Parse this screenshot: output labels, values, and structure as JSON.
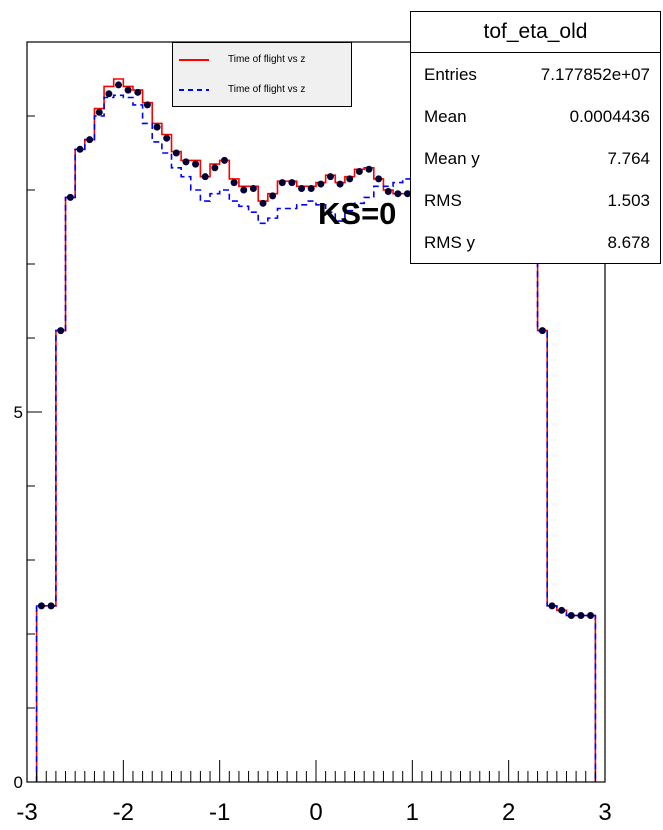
{
  "chart_data": {
    "type": "histogram",
    "title": "tof_eta_old",
    "xlim": [
      -3,
      3
    ],
    "ylim": [
      0,
      10
    ],
    "x_ticks": [
      "-3",
      "-2",
      "-1",
      "0",
      "1",
      "2",
      "3"
    ],
    "y_ticks": [
      {
        "value": 0,
        "label": "0"
      },
      {
        "value": 5,
        "label": "5"
      }
    ],
    "bin_edges": [
      -2.9,
      -2.8,
      -2.7,
      -2.6,
      -2.5,
      -2.4,
      -2.3,
      -2.2,
      -2.1,
      -2.0,
      -1.9,
      -1.8,
      -1.7,
      -1.6,
      -1.5,
      -1.4,
      -1.3,
      -1.2,
      -1.1,
      -1.0,
      -0.9,
      -0.8,
      -0.7,
      -0.6,
      -0.5,
      -0.4,
      -0.3,
      -0.2,
      -0.1,
      0.0,
      0.1,
      0.2,
      0.3,
      0.4,
      0.5,
      0.6,
      0.7,
      0.8,
      0.9,
      1.0,
      1.1,
      1.2,
      1.3,
      1.4,
      1.5,
      1.6,
      1.7,
      1.8,
      1.9,
      2.0,
      2.1,
      2.2,
      2.3,
      2.4,
      2.5,
      2.6,
      2.7,
      2.8,
      2.9
    ],
    "series": [
      {
        "name": "Time of flight vs z",
        "color": "#ff0000",
        "style": "solid",
        "values": [
          2.38,
          2.38,
          6.1,
          7.9,
          8.55,
          8.68,
          9.1,
          9.4,
          9.5,
          9.4,
          9.35,
          9.18,
          8.9,
          8.75,
          8.52,
          8.4,
          8.4,
          8.18,
          8.35,
          8.4,
          8.15,
          8.05,
          8.05,
          7.85,
          7.95,
          8.12,
          8.12,
          8.05,
          8.05,
          8.1,
          8.2,
          8.1,
          8.18,
          8.28,
          8.3,
          8.15,
          8.0,
          7.95,
          7.95,
          8.15,
          8.35,
          8.7,
          9.0,
          9.05,
          9.2,
          9.1,
          8.6,
          8.0,
          7.8,
          7.9,
          8.05,
          7.9,
          6.1,
          2.38,
          2.32,
          2.25,
          2.25,
          2.25
        ]
      },
      {
        "name": "Time of flight vs z",
        "color": "#0000ff",
        "style": "dashed",
        "values": [
          2.38,
          2.38,
          6.1,
          7.9,
          8.55,
          8.68,
          9.0,
          9.25,
          9.28,
          9.25,
          9.15,
          8.9,
          8.65,
          8.5,
          8.3,
          8.18,
          8.0,
          7.85,
          7.95,
          8.0,
          7.85,
          7.78,
          7.7,
          7.55,
          7.62,
          7.75,
          7.75,
          7.8,
          7.85,
          7.8,
          7.7,
          7.58,
          7.72,
          7.82,
          7.9,
          8.05,
          8.05,
          8.1,
          8.15,
          8.25,
          8.4,
          8.7,
          9.0,
          9.05,
          9.2,
          9.1,
          8.6,
          8.2,
          8.0,
          8.0,
          7.95,
          7.9,
          6.1,
          2.38,
          2.32,
          2.25,
          2.25,
          2.25
        ]
      }
    ],
    "points": {
      "color": "#000033",
      "values": [
        2.38,
        2.38,
        6.1,
        7.9,
        8.55,
        8.68,
        9.05,
        9.3,
        9.42,
        9.35,
        9.32,
        9.15,
        8.85,
        8.7,
        8.5,
        8.38,
        8.35,
        8.18,
        8.3,
        8.4,
        8.1,
        8.0,
        8.02,
        7.82,
        7.92,
        8.1,
        8.1,
        8.02,
        8.02,
        8.08,
        8.18,
        8.08,
        8.15,
        8.25,
        8.28,
        8.15,
        7.98,
        7.95,
        7.95,
        8.15,
        8.35,
        8.7,
        9.0,
        9.05,
        9.2,
        9.1,
        8.6,
        8.1,
        7.9,
        7.95,
        8.0,
        7.9,
        6.1,
        2.38,
        2.32,
        2.25,
        2.25,
        2.25
      ]
    },
    "annotation": "KS=0"
  },
  "stats": {
    "title": "tof_eta_old",
    "rows": [
      {
        "key": "Entries",
        "value": "7.177852e+07"
      },
      {
        "key": "Mean",
        "value": "0.0004436"
      },
      {
        "key": "Mean y",
        "value": "7.764"
      },
      {
        "key": "RMS",
        "value": "1.503"
      },
      {
        "key": "RMS y",
        "value": "8.678"
      }
    ]
  },
  "legend": {
    "entries": [
      {
        "label": "Time of flight vs z",
        "color": "#ff0000",
        "style": "solid"
      },
      {
        "label": "Time of flight vs z",
        "color": "#0000ff",
        "style": "dashed"
      }
    ]
  }
}
